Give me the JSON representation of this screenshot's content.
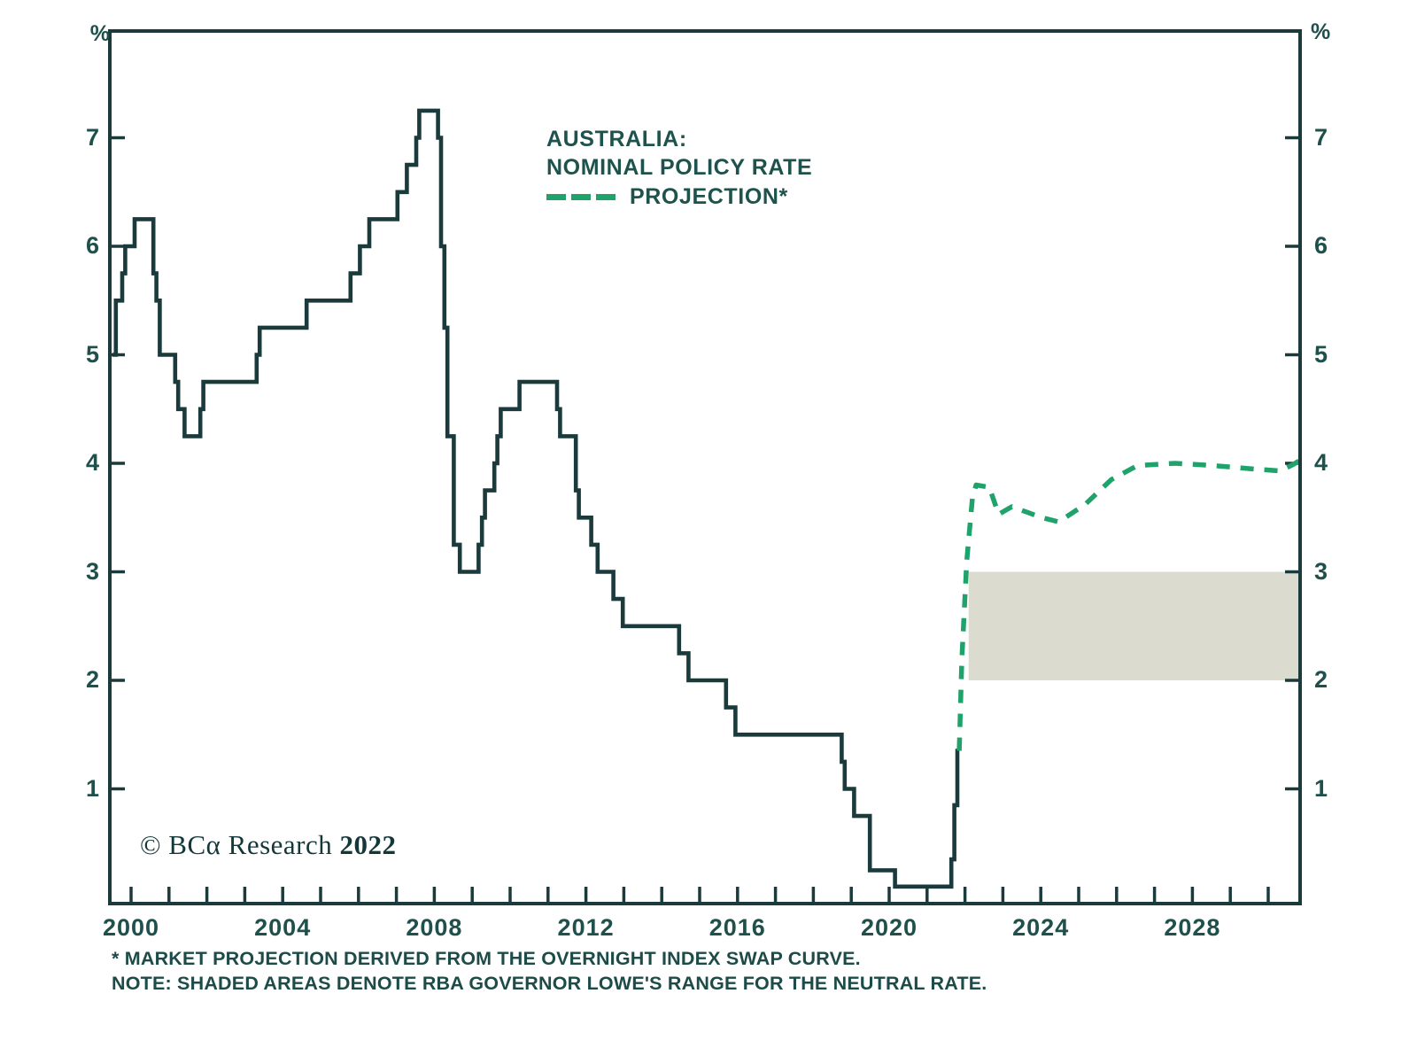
{
  "chart_data": {
    "type": "line",
    "title_lines": [
      "AUSTRALIA:",
      "NOMINAL POLICY RATE",
      "PROJECTION*"
    ],
    "unit_label": "%",
    "x_axis": {
      "tick_year_start": 2000,
      "tick_year_end": 2030,
      "label_years": [
        2000,
        2004,
        2008,
        2012,
        2016,
        2020,
        2024,
        2028
      ]
    },
    "y_axis": {
      "ticks": [
        1,
        2,
        3,
        4,
        5,
        6,
        7
      ],
      "min": 0,
      "max": 8
    },
    "series": [
      {
        "name": "NOMINAL POLICY RATE",
        "style": "step-solid",
        "color": "#1b3a3c",
        "points": [
          [
            2000.0,
            5.0
          ],
          [
            2000.09,
            5.5
          ],
          [
            2000.26,
            5.75
          ],
          [
            2000.34,
            6.0
          ],
          [
            2000.59,
            6.25
          ],
          [
            2001.09,
            5.75
          ],
          [
            2001.17,
            5.5
          ],
          [
            2001.26,
            5.0
          ],
          [
            2001.67,
            4.75
          ],
          [
            2001.75,
            4.5
          ],
          [
            2001.92,
            4.25
          ],
          [
            2002.34,
            4.5
          ],
          [
            2002.42,
            4.75
          ],
          [
            2003.84,
            5.0
          ],
          [
            2003.92,
            5.25
          ],
          [
            2005.17,
            5.5
          ],
          [
            2006.34,
            5.75
          ],
          [
            2006.59,
            6.0
          ],
          [
            2006.84,
            6.25
          ],
          [
            2007.59,
            6.5
          ],
          [
            2007.84,
            6.75
          ],
          [
            2008.09,
            7.0
          ],
          [
            2008.17,
            7.25
          ],
          [
            2008.67,
            7.0
          ],
          [
            2008.75,
            6.0
          ],
          [
            2008.84,
            5.25
          ],
          [
            2008.92,
            4.25
          ],
          [
            2009.09,
            3.25
          ],
          [
            2009.25,
            3.0
          ],
          [
            2009.75,
            3.25
          ],
          [
            2009.84,
            3.5
          ],
          [
            2009.92,
            3.75
          ],
          [
            2010.17,
            4.0
          ],
          [
            2010.25,
            4.25
          ],
          [
            2010.34,
            4.5
          ],
          [
            2010.84,
            4.75
          ],
          [
            2011.84,
            4.5
          ],
          [
            2011.92,
            4.25
          ],
          [
            2012.34,
            3.75
          ],
          [
            2012.42,
            3.5
          ],
          [
            2012.75,
            3.25
          ],
          [
            2012.92,
            3.0
          ],
          [
            2013.34,
            2.75
          ],
          [
            2013.59,
            2.5
          ],
          [
            2015.09,
            2.25
          ],
          [
            2015.34,
            2.0
          ],
          [
            2016.34,
            1.75
          ],
          [
            2016.59,
            1.5
          ],
          [
            2019.42,
            1.25
          ],
          [
            2019.5,
            1.0
          ],
          [
            2019.75,
            0.75
          ],
          [
            2020.17,
            0.25
          ],
          [
            2020.84,
            0.1
          ],
          [
            2022.34,
            0.35
          ],
          [
            2022.42,
            0.85
          ],
          [
            2022.5,
            1.35
          ]
        ],
        "end_t": 2022.55
      },
      {
        "name": "PROJECTION",
        "style": "dashed",
        "color": "#1fa36b",
        "points": [
          [
            2022.55,
            1.35
          ],
          [
            2022.62,
            2.2
          ],
          [
            2022.75,
            3.1
          ],
          [
            2022.9,
            3.68
          ],
          [
            2023.0,
            3.8
          ],
          [
            2023.35,
            3.78
          ],
          [
            2023.6,
            3.53
          ],
          [
            2023.95,
            3.6
          ],
          [
            2024.35,
            3.55
          ],
          [
            2024.75,
            3.5
          ],
          [
            2025.2,
            3.46
          ],
          [
            2025.9,
            3.62
          ],
          [
            2026.6,
            3.85
          ],
          [
            2027.3,
            3.98
          ],
          [
            2028.3,
            4.0
          ],
          [
            2029.3,
            3.98
          ],
          [
            2030.3,
            3.95
          ],
          [
            2031.1,
            3.93
          ],
          [
            2031.45,
            3.99
          ],
          [
            2031.63,
            4.03
          ]
        ]
      }
    ],
    "neutral_rate_band": {
      "label": "RBA GOVERNOR LOWE'S RANGE FOR THE NEUTRAL RATE",
      "y_from": 2.0,
      "y_to": 3.0,
      "x_from": 2022.8,
      "x_to": 2031.63,
      "color": "#dcdbd0"
    },
    "footnotes": [
      "* MARKET PROJECTION DERIVED FROM THE OVERNIGHT INDEX SWAP CURVE.",
      "NOTE: SHADED AREAS DENOTE RBA GOVERNOR LOWE'S RANGE FOR THE NEUTRAL RATE."
    ],
    "copyright": {
      "text": "© BCα Research ",
      "year": "2022"
    }
  }
}
